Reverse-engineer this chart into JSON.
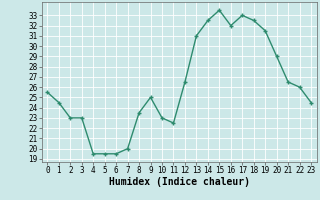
{
  "x": [
    0,
    1,
    2,
    3,
    4,
    5,
    6,
    7,
    8,
    9,
    10,
    11,
    12,
    13,
    14,
    15,
    16,
    17,
    18,
    19,
    20,
    21,
    22,
    23
  ],
  "y": [
    25.5,
    24.5,
    23.0,
    23.0,
    19.5,
    19.5,
    19.5,
    20.0,
    23.5,
    25.0,
    23.0,
    22.5,
    26.5,
    31.0,
    32.5,
    33.5,
    32.0,
    33.0,
    32.5,
    31.5,
    29.0,
    26.5,
    26.0,
    24.5
  ],
  "line_color": "#2e8b6e",
  "marker": "+",
  "marker_size": 3,
  "bg_color": "#cce8e8",
  "grid_color": "#ffffff",
  "xlabel": "Humidex (Indice chaleur)",
  "ylim": [
    19,
    34
  ],
  "xlim": [
    -0.5,
    23.5
  ],
  "yticks": [
    19,
    20,
    21,
    22,
    23,
    24,
    25,
    26,
    27,
    28,
    29,
    30,
    31,
    32,
    33
  ],
  "xticks": [
    0,
    1,
    2,
    3,
    4,
    5,
    6,
    7,
    8,
    9,
    10,
    11,
    12,
    13,
    14,
    15,
    16,
    17,
    18,
    19,
    20,
    21,
    22,
    23
  ],
  "tick_fontsize": 5.5,
  "xlabel_fontsize": 7,
  "line_width": 1.0,
  "marker_edge_width": 1.0
}
